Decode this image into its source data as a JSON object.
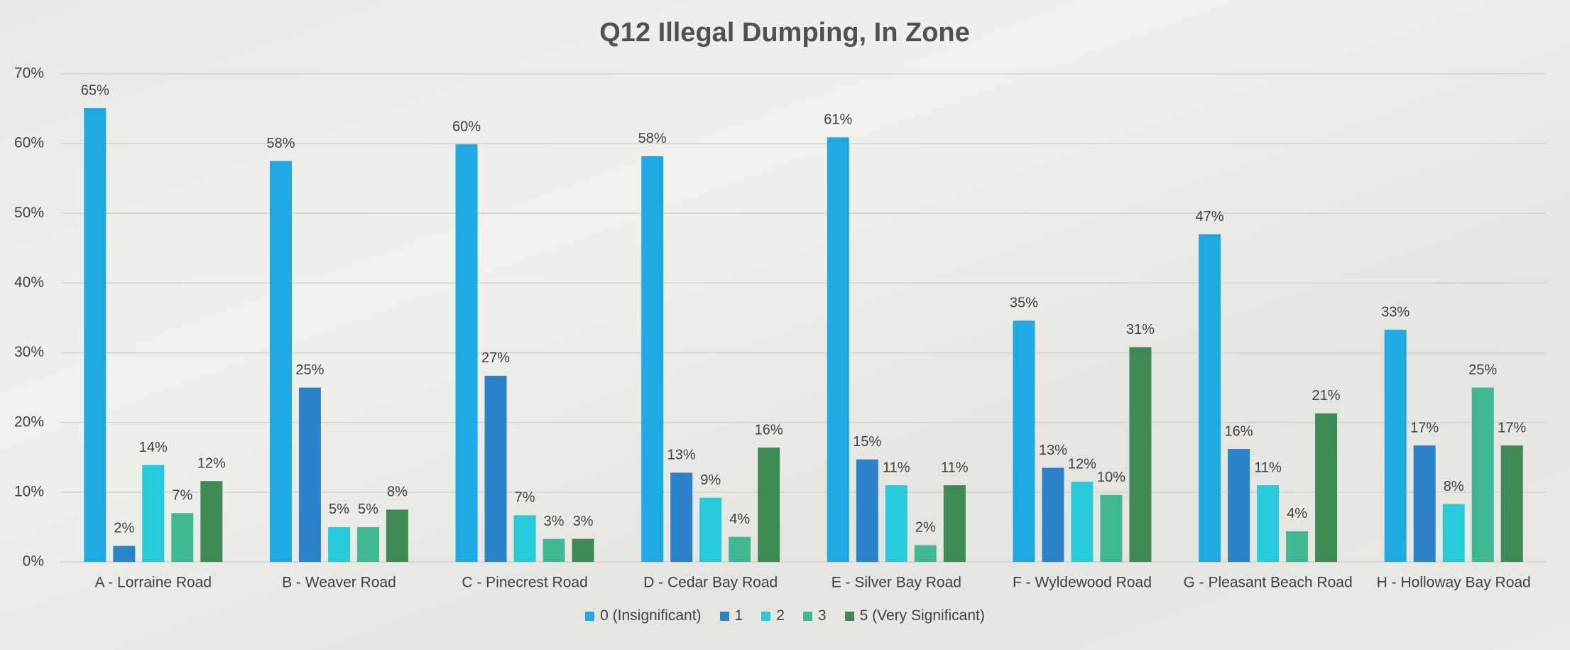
{
  "chart_data": {
    "type": "bar",
    "title": "Q12 Illegal Dumping, In Zone",
    "categories": [
      "A - Lorraine Road",
      "B - Weaver Road",
      "C - Pinecrest Road",
      "D - Cedar Bay Road",
      "E - Silver Bay Road",
      "F - Wyldewood Road",
      "G - Pleasant Beach Road",
      "H - Holloway Bay Road"
    ],
    "series": [
      {
        "name": "0 (Insignificant)",
        "color": "#1fa9e4",
        "values": [
          65.1,
          57.5,
          59.9,
          58.2,
          60.9,
          34.6,
          47.0,
          33.3
        ],
        "value_labels": [
          "65%",
          "58%",
          "60%",
          "58%",
          "61%",
          "35%",
          "47%",
          "33%"
        ]
      },
      {
        "name": "1",
        "color": "#2a82c8",
        "values": [
          2.3,
          25.0,
          26.7,
          12.8,
          14.7,
          13.5,
          16.2,
          16.7
        ],
        "value_labels": [
          "2%",
          "25%",
          "27%",
          "13%",
          "15%",
          "13%",
          "16%",
          "17%"
        ]
      },
      {
        "name": "2",
        "color": "#27cad8",
        "values": [
          13.9,
          5.0,
          6.7,
          9.2,
          11.0,
          11.5,
          11.0,
          8.3
        ],
        "value_labels": [
          "14%",
          "5%",
          "7%",
          "9%",
          "11%",
          "12%",
          "11%",
          "8%"
        ]
      },
      {
        "name": "3",
        "color": "#3fb993",
        "values": [
          7.0,
          5.0,
          3.3,
          3.6,
          2.4,
          9.6,
          4.4,
          25.0
        ],
        "value_labels": [
          "7%",
          "5%",
          "3%",
          "4%",
          "2%",
          "10%",
          "4%",
          "25%"
        ]
      },
      {
        "name": "5 (Very Significant)",
        "color": "#3d8a55",
        "values": [
          11.6,
          7.5,
          3.3,
          16.4,
          11.0,
          30.8,
          21.3,
          16.7
        ],
        "value_labels": [
          "12%",
          "8%",
          "3%",
          "16%",
          "11%",
          "31%",
          "21%",
          "17%"
        ]
      }
    ],
    "ylim": [
      0,
      70
    ],
    "yticks": [
      {
        "value": 0,
        "label": "0%"
      },
      {
        "value": 10,
        "label": "10%"
      },
      {
        "value": 20,
        "label": "20%"
      },
      {
        "value": 30,
        "label": "30%"
      },
      {
        "value": 40,
        "label": "40%"
      },
      {
        "value": 50,
        "label": "50%"
      },
      {
        "value": 60,
        "label": "60%"
      },
      {
        "value": 70,
        "label": "70%"
      }
    ],
    "grid": true,
    "legend": "bottom"
  }
}
